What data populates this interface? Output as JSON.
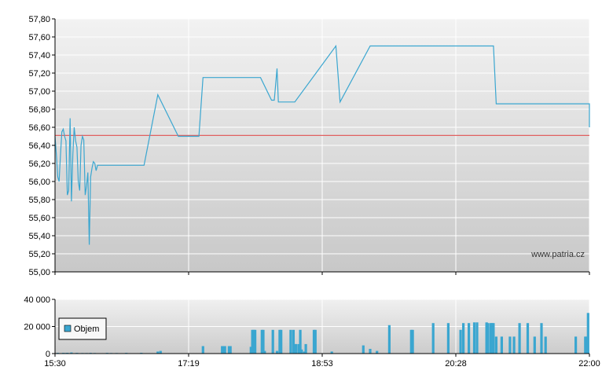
{
  "watermark": "www.patria.cz",
  "chart_data": [
    {
      "type": "line",
      "x_ticks": [
        "15:30",
        "17:19",
        "18:53",
        "20:28",
        "22:00"
      ],
      "y_ticks": [
        "55,00",
        "55,20",
        "55,40",
        "55,60",
        "55,80",
        "56,00",
        "56,20",
        "56,40",
        "56,60",
        "56,80",
        "57,00",
        "57,20",
        "57,40",
        "57,60",
        "57,80"
      ],
      "ylim": [
        55.0,
        57.8
      ],
      "xlim": [
        0,
        390
      ],
      "grid": true,
      "reference_line": {
        "value": 56.51,
        "color": "#e06060"
      },
      "series": [
        {
          "color": "#3aa6d0",
          "x": [
            0,
            1,
            2,
            3,
            4,
            5,
            6,
            7,
            8,
            9,
            10,
            11,
            12,
            13,
            14,
            15,
            16,
            17,
            18,
            19,
            20,
            21,
            22,
            23,
            24,
            25,
            26,
            27,
            28,
            29,
            30,
            31,
            32,
            33,
            34,
            35,
            36,
            40,
            50,
            60,
            65,
            75,
            90,
            105,
            108,
            130,
            150,
            158,
            160,
            162,
            163,
            165,
            175,
            205,
            208,
            230,
            300,
            320,
            322,
            390,
            390
          ],
          "y": [
            56.5,
            56.3,
            56.05,
            56.0,
            56.3,
            56.55,
            56.58,
            56.5,
            56.45,
            55.85,
            55.9,
            56.7,
            55.78,
            56.3,
            56.6,
            56.45,
            56.38,
            56.0,
            55.9,
            56.4,
            56.5,
            56.46,
            55.85,
            55.95,
            56.1,
            55.3,
            56.05,
            56.15,
            56.22,
            56.2,
            56.12,
            56.18,
            56.18,
            56.18,
            56.18,
            56.18,
            56.18,
            56.18,
            56.18,
            56.18,
            56.18,
            56.96,
            56.5,
            56.5,
            57.15,
            57.15,
            57.15,
            56.9,
            56.9,
            57.25,
            56.88,
            56.88,
            56.88,
            57.5,
            56.88,
            57.5,
            57.5,
            57.5,
            56.86,
            56.86,
            56.6
          ]
        }
      ]
    },
    {
      "type": "bar",
      "x_ticks": [
        "15:30",
        "17:19",
        "18:53",
        "20:28",
        "22:00"
      ],
      "y_ticks": [
        "0",
        "20 000",
        "40 000"
      ],
      "ylim": [
        0,
        40000
      ],
      "xlim": [
        0,
        390
      ],
      "grid": true,
      "legend": {
        "position": "left",
        "entries": [
          "Objem"
        ]
      },
      "series": [
        {
          "name": "Objem",
          "color": "#3aa6d0",
          "x": [
            2,
            6,
            8,
            9,
            12,
            16,
            20,
            23,
            26,
            29,
            32,
            38,
            41,
            45,
            52,
            61,
            63,
            75,
            77,
            108,
            122,
            123,
            124,
            127,
            128,
            143,
            144,
            145,
            146,
            151,
            152,
            153,
            159,
            162,
            164,
            165,
            172,
            174,
            175,
            176,
            178,
            179,
            180,
            182,
            183,
            189,
            190,
            202,
            225,
            230,
            235,
            244,
            260,
            261,
            276,
            287,
            296,
            298,
            302,
            306,
            308,
            315,
            315,
            316,
            318,
            319,
            320,
            322,
            326,
            332,
            335,
            339,
            345,
            350,
            355,
            358,
            380,
            387,
            388,
            389
          ],
          "values": [
            500,
            500,
            400,
            600,
            800,
            500,
            400,
            400,
            500,
            400,
            300,
            500,
            400,
            400,
            500,
            300,
            600,
            1500,
            2000,
            5500,
            5500,
            5500,
            5500,
            5500,
            5500,
            5000,
            17500,
            17500,
            17500,
            17500,
            17500,
            2000,
            17500,
            2000,
            17500,
            17500,
            17500,
            17500,
            7000,
            7000,
            7000,
            17500,
            3000,
            1500,
            7000,
            17500,
            17500,
            1500,
            6000,
            3500,
            2000,
            21000,
            17500,
            17500,
            22500,
            22500,
            17500,
            22500,
            22500,
            23000,
            23000,
            23000,
            22500,
            22500,
            22500,
            22500,
            22500,
            12500,
            12500,
            12500,
            12500,
            22500,
            22500,
            12500,
            22500,
            12500,
            12500,
            12500,
            12500,
            30000
          ]
        }
      ]
    }
  ]
}
